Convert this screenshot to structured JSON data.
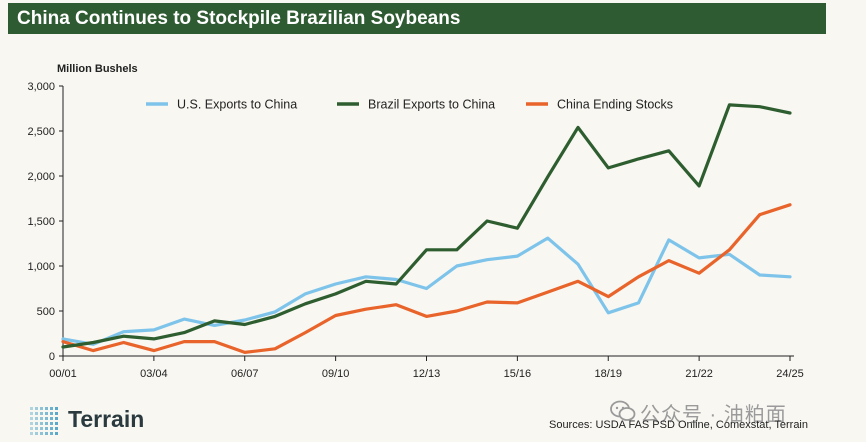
{
  "title": "China Continues to Stockpile Brazilian Soybeans",
  "sources": "Sources: USDA FAS PSD Online, Comexstat, Terrain",
  "logo": "Terrain",
  "watermark": "公众号 · 油粕面",
  "colors": {
    "us": "#7ec4ea",
    "brazil": "#2e5e2f",
    "china": "#e8642b",
    "title_bg": "#2e5b32",
    "axis": "#222222"
  },
  "chart_data": {
    "type": "line",
    "title": "China Continues to Stockpile Brazilian Soybeans",
    "ylabel": "Million Bushels",
    "xlabel": "",
    "ylim": [
      0,
      3000
    ],
    "yticks": [
      0,
      500,
      1000,
      1500,
      2000,
      2500,
      3000
    ],
    "ytick_labels": [
      "0",
      "500",
      "1,000",
      "1,500",
      "2,000",
      "2,500",
      "3,000"
    ],
    "x": [
      "00/01",
      "01/02",
      "02/03",
      "03/04",
      "04/05",
      "05/06",
      "06/07",
      "07/08",
      "08/09",
      "09/10",
      "10/11",
      "11/12",
      "12/13",
      "13/14",
      "14/15",
      "15/16",
      "16/17",
      "17/18",
      "18/19",
      "19/20",
      "20/21",
      "21/22",
      "22/23",
      "23/24",
      "24/25"
    ],
    "xtick_labels": [
      "00/01",
      "03/04",
      "06/07",
      "09/10",
      "12/13",
      "15/16",
      "18/19",
      "21/22",
      "24/25"
    ],
    "legend_position": "top",
    "grid": false,
    "series": [
      {
        "name": "U.S. Exports to China",
        "color": "#7ec4ea",
        "values": [
          190,
          130,
          270,
          290,
          410,
          340,
          400,
          490,
          690,
          800,
          880,
          850,
          750,
          1000,
          1070,
          1110,
          1310,
          1020,
          480,
          590,
          1290,
          1090,
          1130,
          900,
          880
        ]
      },
      {
        "name": "Brazil Exports to China",
        "color": "#2e5e2f",
        "values": [
          100,
          150,
          220,
          190,
          260,
          390,
          350,
          440,
          580,
          690,
          830,
          800,
          1180,
          1180,
          1500,
          1420,
          1990,
          2540,
          2090,
          2190,
          2280,
          1890,
          2790,
          2770,
          2700
        ]
      },
      {
        "name": "China Ending Stocks",
        "color": "#e8642b",
        "values": [
          160,
          60,
          150,
          60,
          160,
          160,
          40,
          80,
          260,
          450,
          520,
          570,
          440,
          500,
          600,
          590,
          710,
          830,
          660,
          880,
          1060,
          920,
          1180,
          1570,
          1680
        ]
      }
    ]
  }
}
